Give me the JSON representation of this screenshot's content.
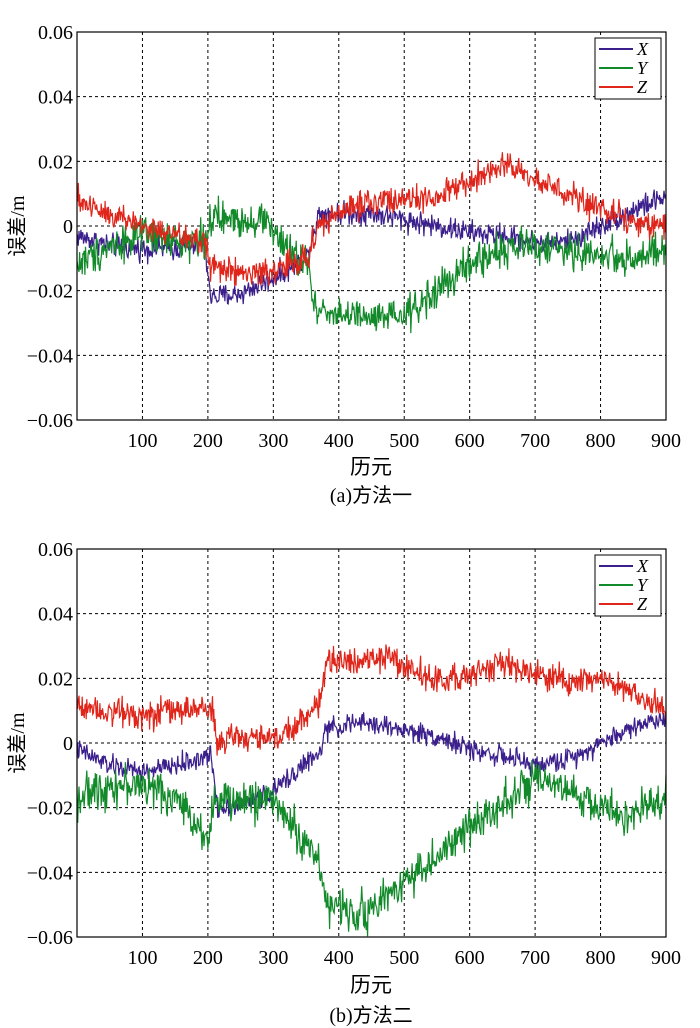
{
  "chart_data": [
    {
      "type": "line",
      "caption": "(a)方法一",
      "xlabel": "历元",
      "ylabel": "误差/m",
      "xlim": [
        0,
        900
      ],
      "ylim": [
        -0.06,
        0.06
      ],
      "xticks": [
        100,
        200,
        300,
        400,
        500,
        600,
        700,
        800,
        900
      ],
      "yticks": [
        -0.06,
        -0.04,
        -0.02,
        0,
        0.02,
        0.04,
        0.06
      ],
      "ytick_labels": [
        "−0.06",
        "−0.04",
        "−0.02",
        "0",
        "0.02",
        "0.04",
        "0.06"
      ],
      "grid": true,
      "legend_position": "top-right",
      "series": [
        {
          "name": "X",
          "color": "#3b1f8c",
          "noise": 0.0018,
          "x": [
            0,
            50,
            100,
            150,
            195,
            205,
            250,
            300,
            350,
            370,
            400,
            450,
            500,
            550,
            600,
            650,
            700,
            750,
            800,
            850,
            900
          ],
          "y": [
            -0.003,
            -0.006,
            -0.007,
            -0.007,
            -0.006,
            -0.022,
            -0.021,
            -0.016,
            -0.01,
            0.004,
            0.004,
            0.004,
            0.002,
            0.0,
            -0.002,
            -0.003,
            -0.005,
            -0.005,
            0.0,
            0.005,
            0.009
          ]
        },
        {
          "name": "Y",
          "color": "#128a2a",
          "noise": 0.0028,
          "x": [
            0,
            50,
            100,
            150,
            195,
            205,
            250,
            290,
            320,
            355,
            360,
            400,
            450,
            500,
            550,
            600,
            650,
            700,
            750,
            800,
            850,
            900
          ],
          "y": [
            -0.012,
            -0.006,
            -0.003,
            -0.005,
            -0.004,
            0.002,
            0.002,
            0.002,
            -0.008,
            -0.012,
            -0.025,
            -0.027,
            -0.029,
            -0.028,
            -0.02,
            -0.012,
            -0.007,
            -0.006,
            -0.008,
            -0.009,
            -0.01,
            -0.008
          ]
        },
        {
          "name": "Z",
          "color": "#e0261b",
          "noise": 0.0022,
          "x": [
            0,
            50,
            100,
            150,
            195,
            205,
            250,
            300,
            350,
            370,
            400,
            450,
            500,
            550,
            600,
            650,
            680,
            700,
            750,
            800,
            850,
            900
          ],
          "y": [
            0.008,
            0.004,
            0.0,
            -0.003,
            -0.005,
            -0.012,
            -0.015,
            -0.014,
            -0.01,
            0.0,
            0.004,
            0.008,
            0.008,
            0.008,
            0.014,
            0.018,
            0.018,
            0.014,
            0.01,
            0.005,
            0.002,
            0.0
          ]
        }
      ]
    },
    {
      "type": "line",
      "caption": "(b)方法二",
      "xlabel": "历元",
      "ylabel": "误差/m",
      "xlim": [
        0,
        900
      ],
      "ylim": [
        -0.06,
        0.06
      ],
      "xticks": [
        100,
        200,
        300,
        400,
        500,
        600,
        700,
        800,
        900
      ],
      "yticks": [
        -0.06,
        -0.04,
        -0.02,
        0,
        0.02,
        0.04,
        0.06
      ],
      "ytick_labels": [
        "−0.06",
        "−0.04",
        "−0.02",
        "0",
        "0.02",
        "0.04",
        "0.06"
      ],
      "grid": true,
      "legend_position": "top-right",
      "series": [
        {
          "name": "X",
          "color": "#3b1f8c",
          "noise": 0.0016,
          "x": [
            0,
            50,
            100,
            150,
            205,
            215,
            250,
            300,
            350,
            370,
            380,
            420,
            450,
            500,
            550,
            600,
            650,
            700,
            750,
            800,
            850,
            900
          ],
          "y": [
            -0.002,
            -0.007,
            -0.009,
            -0.007,
            -0.004,
            -0.02,
            -0.019,
            -0.015,
            -0.006,
            -0.004,
            0.004,
            0.006,
            0.006,
            0.004,
            0.002,
            -0.002,
            -0.004,
            -0.007,
            -0.005,
            0.0,
            0.005,
            0.008
          ]
        },
        {
          "name": "Y",
          "color": "#128a2a",
          "noise": 0.003,
          "x": [
            0,
            50,
            100,
            150,
            200,
            210,
            250,
            300,
            350,
            370,
            380,
            420,
            450,
            500,
            550,
            600,
            650,
            700,
            750,
            800,
            850,
            900
          ],
          "y": [
            -0.017,
            -0.013,
            -0.013,
            -0.017,
            -0.029,
            -0.018,
            -0.018,
            -0.017,
            -0.032,
            -0.035,
            -0.05,
            -0.052,
            -0.052,
            -0.042,
            -0.036,
            -0.026,
            -0.018,
            -0.012,
            -0.015,
            -0.02,
            -0.023,
            -0.016
          ]
        },
        {
          "name": "Z",
          "color": "#e0261b",
          "noise": 0.0022,
          "x": [
            0,
            50,
            100,
            150,
            205,
            215,
            250,
            300,
            350,
            370,
            380,
            420,
            450,
            500,
            550,
            600,
            650,
            700,
            750,
            800,
            850,
            900
          ],
          "y": [
            0.012,
            0.01,
            0.009,
            0.01,
            0.011,
            0.0,
            0.002,
            0.001,
            0.008,
            0.012,
            0.024,
            0.026,
            0.027,
            0.024,
            0.019,
            0.021,
            0.025,
            0.021,
            0.019,
            0.02,
            0.016,
            0.01
          ]
        }
      ]
    }
  ]
}
